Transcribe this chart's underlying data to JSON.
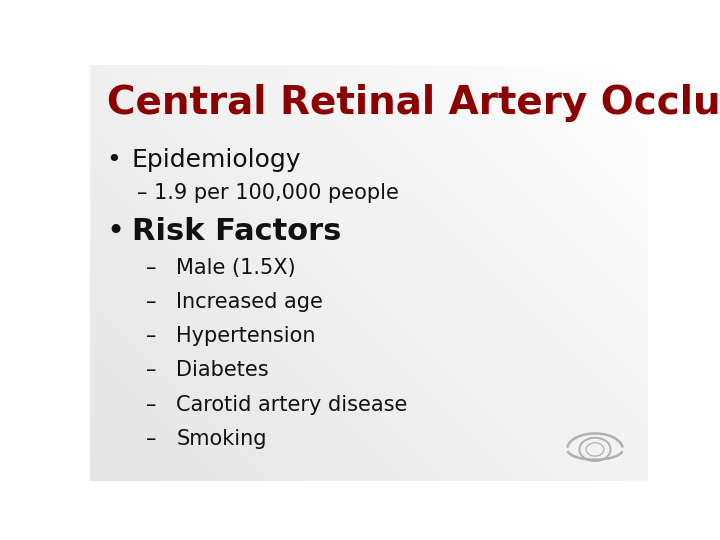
{
  "title": "Central Retinal Artery Occlusion",
  "title_color": "#8B0000",
  "title_fontsize": 28,
  "title_fontweight": "bold",
  "background_top": "#ffffff",
  "background_bottom_left": "#d0d0d8",
  "bullet1_text": "Epidemiology",
  "bullet1_fontsize": 18,
  "sub1_text": "– 1.9 per 100,000 people",
  "sub1_fontsize": 15,
  "bullet2_text": "Risk Factors",
  "bullet2_fontsize": 22,
  "risk_items": [
    "Male (1.5X)",
    "Increased age",
    "Hypertension",
    "Diabetes",
    "Carotid artery disease",
    "Smoking"
  ],
  "risk_fontsize": 15,
  "bullet_color": "#111111",
  "text_color": "#111111",
  "dash_color": "#111111",
  "eye_color": "#b0b0b0"
}
